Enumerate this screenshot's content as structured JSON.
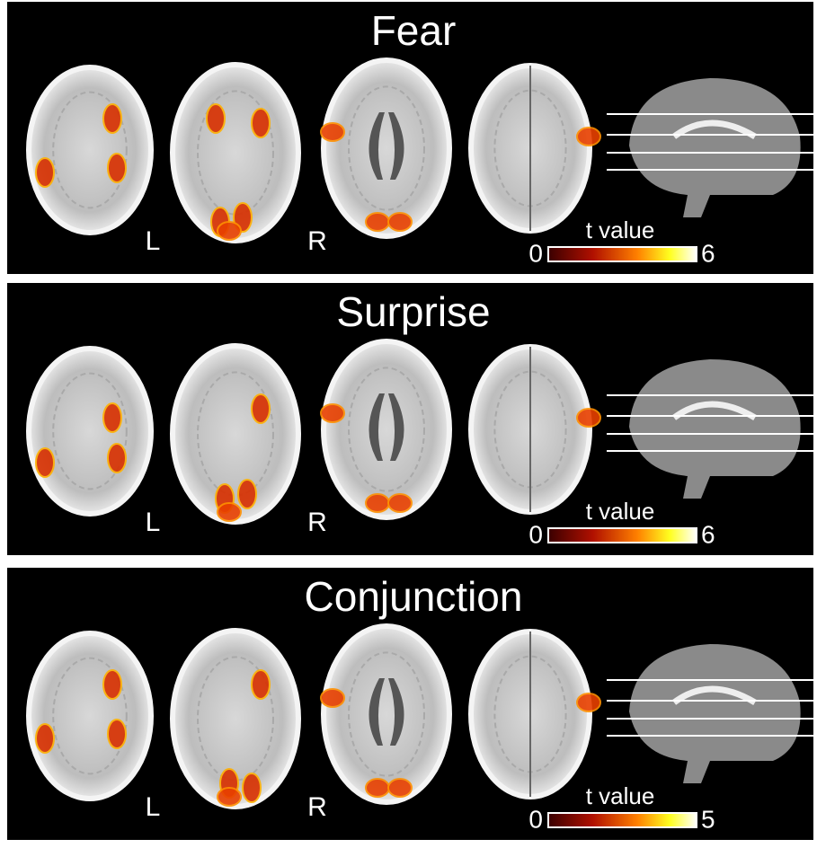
{
  "panels": [
    {
      "title": "Fear",
      "left_label": "L",
      "right_label": "R",
      "colorbar": {
        "label": "t value",
        "min": 0,
        "max": 6
      }
    },
    {
      "title": "Surprise",
      "left_label": "L",
      "right_label": "R",
      "colorbar": {
        "label": "t value",
        "min": 0,
        "max": 6
      }
    },
    {
      "title": "Conjunction",
      "left_label": "L",
      "right_label": "R",
      "colorbar": {
        "label": "t value",
        "min": 0,
        "max": 5
      }
    }
  ]
}
